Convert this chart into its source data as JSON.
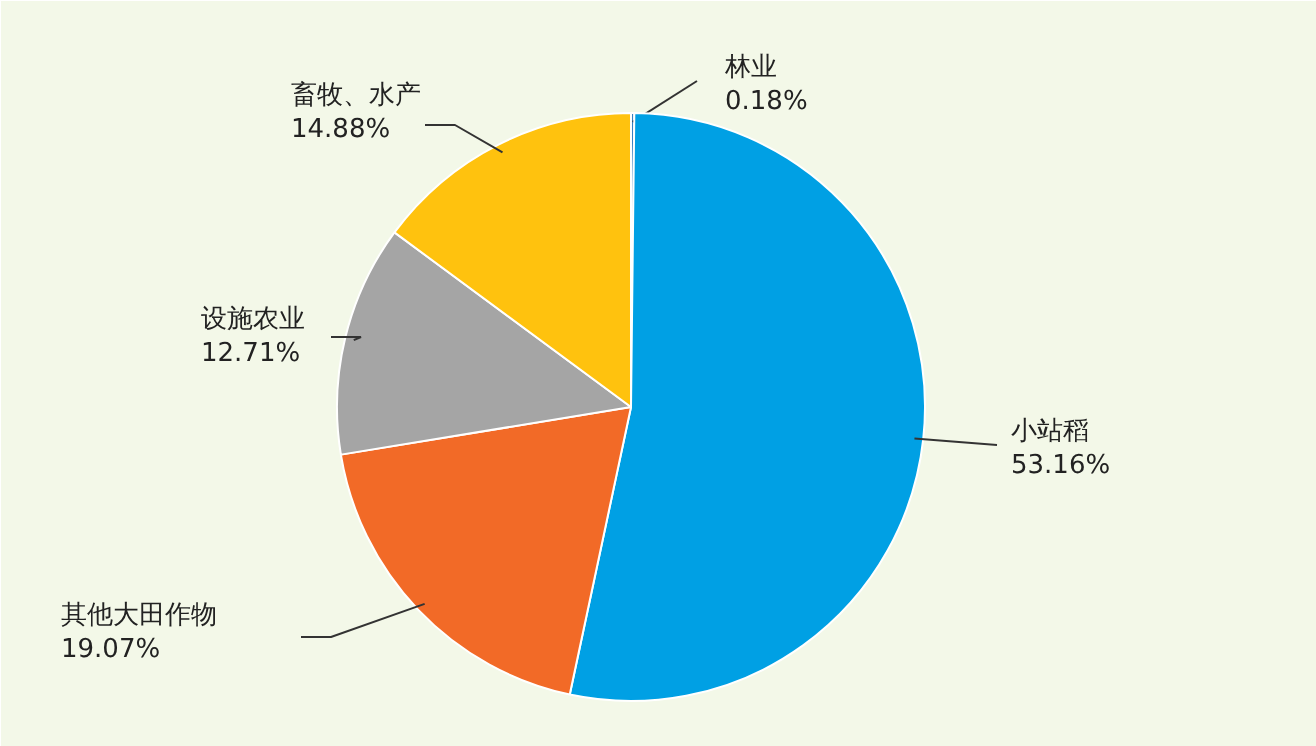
{
  "chart_data": {
    "type": "pie",
    "categories": [
      "林业",
      "小站稻",
      "其他大田作物",
      "设施农业",
      "畜牧、水产"
    ],
    "values": [
      0.18,
      53.16,
      19.07,
      12.71,
      14.88
    ],
    "colors": [
      "#3a7fc1",
      "#00a0e4",
      "#f26a27",
      "#a5a5a5",
      "#ffc20e"
    ],
    "value_labels": [
      "0.18%",
      "53.16%",
      "19.07%",
      "12.71%",
      "14.88%"
    ]
  }
}
